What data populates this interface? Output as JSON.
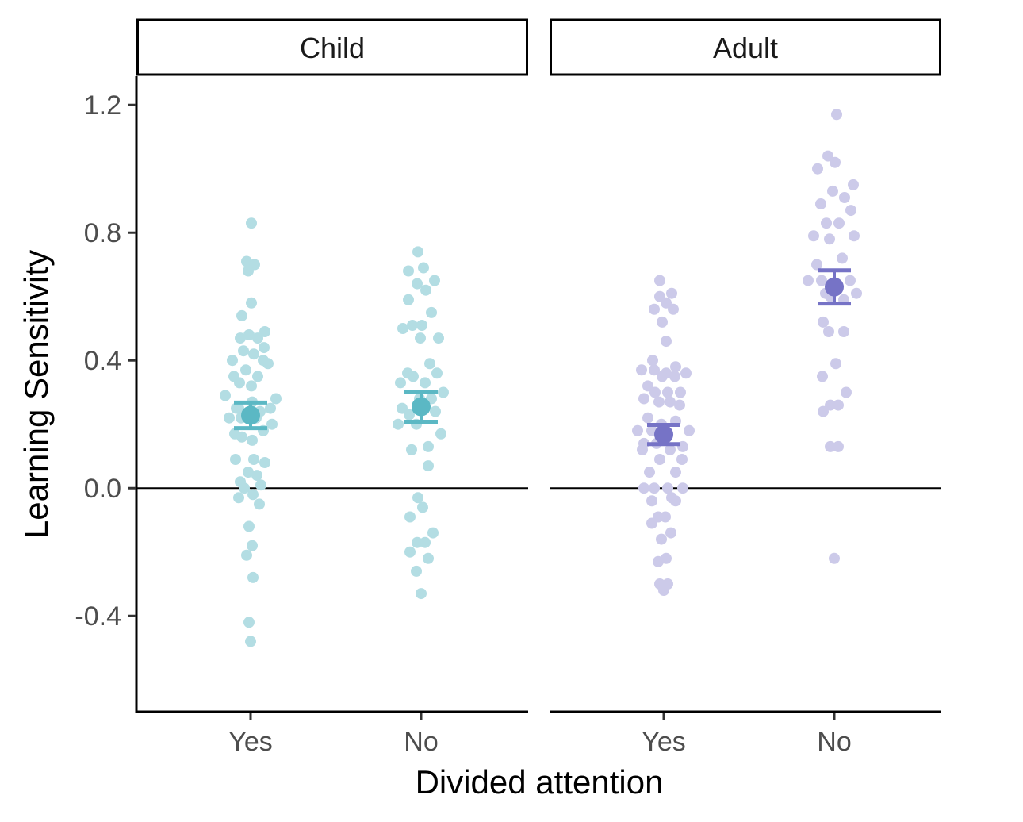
{
  "chart_data": {
    "type": "scatter",
    "subtype": "faceted jittered dot plot with mean and error bars",
    "xlabel": "Divided attention",
    "ylabel": "Learning Sensitivity",
    "ylim": [
      -0.7,
      1.29
    ],
    "yticks": [
      -0.4,
      0.0,
      0.4,
      0.8,
      1.2
    ],
    "ytick_labels": [
      "-0.4",
      "0.0",
      "0.4",
      "0.8",
      "1.2"
    ],
    "categories": [
      "Yes",
      "No"
    ],
    "reference_line_y": 0,
    "grid": false,
    "legend": "none",
    "panels": [
      {
        "strip_label": "Child",
        "color": "#5bb8c4",
        "point_color": "#b3dde3",
        "groups": [
          {
            "category": "Yes",
            "mean": 0.228,
            "ci": [
              0.188,
              0.268
            ],
            "points": [
              {
                "dx": 0.01,
                "y": 0.83
              },
              {
                "dx": -0.05,
                "y": 0.71
              },
              {
                "dx": 0.05,
                "y": 0.7
              },
              {
                "dx": -0.03,
                "y": 0.68
              },
              {
                "dx": 0.01,
                "y": 0.58
              },
              {
                "dx": -0.11,
                "y": 0.54
              },
              {
                "dx": 0.18,
                "y": 0.49
              },
              {
                "dx": -0.13,
                "y": 0.47
              },
              {
                "dx": -0.02,
                "y": 0.48
              },
              {
                "dx": 0.09,
                "y": 0.47
              },
              {
                "dx": -0.23,
                "y": 0.4
              },
              {
                "dx": 0.17,
                "y": 0.44
              },
              {
                "dx": -0.09,
                "y": 0.43
              },
              {
                "dx": 0.04,
                "y": 0.42
              },
              {
                "dx": 0.22,
                "y": 0.39
              },
              {
                "dx": 0.16,
                "y": 0.4
              },
              {
                "dx": -0.06,
                "y": 0.37
              },
              {
                "dx": 0.09,
                "y": 0.35
              },
              {
                "dx": -0.21,
                "y": 0.35
              },
              {
                "dx": -0.14,
                "y": 0.33
              },
              {
                "dx": -0.15,
                "y": 0.25
              },
              {
                "dx": 0.01,
                "y": 0.32
              },
              {
                "dx": -0.32,
                "y": 0.29
              },
              {
                "dx": 0.32,
                "y": 0.28
              },
              {
                "dx": 0.02,
                "y": 0.27
              },
              {
                "dx": 0.25,
                "y": 0.25
              },
              {
                "dx": -0.18,
                "y": 0.25
              },
              {
                "dx": 0.12,
                "y": 0.24
              },
              {
                "dx": -0.27,
                "y": 0.22
              },
              {
                "dx": 0.07,
                "y": 0.22
              },
              {
                "dx": -0.12,
                "y": 0.22
              },
              {
                "dx": 0.27,
                "y": 0.2
              },
              {
                "dx": -0.2,
                "y": 0.17
              },
              {
                "dx": 0.16,
                "y": 0.18
              },
              {
                "dx": -0.11,
                "y": 0.16
              },
              {
                "dx": 0.02,
                "y": 0.15
              },
              {
                "dx": -0.19,
                "y": 0.09
              },
              {
                "dx": 0.18,
                "y": 0.08
              },
              {
                "dx": 0.04,
                "y": 0.09
              },
              {
                "dx": -0.03,
                "y": 0.05
              },
              {
                "dx": 0.08,
                "y": 0.04
              },
              {
                "dx": -0.13,
                "y": 0.02
              },
              {
                "dx": 0.13,
                "y": 0.01
              },
              {
                "dx": -0.08,
                "y": 0.0
              },
              {
                "dx": -0.15,
                "y": -0.03
              },
              {
                "dx": 0.03,
                "y": -0.02
              },
              {
                "dx": 0.11,
                "y": -0.05
              },
              {
                "dx": -0.02,
                "y": -0.12
              },
              {
                "dx": 0.02,
                "y": -0.18
              },
              {
                "dx": -0.05,
                "y": -0.21
              },
              {
                "dx": 0.03,
                "y": -0.28
              },
              {
                "dx": -0.02,
                "y": -0.42
              },
              {
                "dx": 0.0,
                "y": -0.48
              }
            ]
          },
          {
            "category": "No",
            "mean": 0.255,
            "ci": [
              0.208,
              0.302
            ],
            "points": [
              {
                "dx": -0.04,
                "y": 0.74
              },
              {
                "dx": 0.03,
                "y": 0.69
              },
              {
                "dx": -0.16,
                "y": 0.68
              },
              {
                "dx": 0.17,
                "y": 0.65
              },
              {
                "dx": -0.05,
                "y": 0.64
              },
              {
                "dx": 0.06,
                "y": 0.62
              },
              {
                "dx": -0.16,
                "y": 0.59
              },
              {
                "dx": 0.13,
                "y": 0.55
              },
              {
                "dx": -0.11,
                "y": 0.51
              },
              {
                "dx": 0.01,
                "y": 0.51
              },
              {
                "dx": -0.23,
                "y": 0.5
              },
              {
                "dx": 0.22,
                "y": 0.47
              },
              {
                "dx": -0.01,
                "y": 0.47
              },
              {
                "dx": 0.11,
                "y": 0.39
              },
              {
                "dx": -0.17,
                "y": 0.36
              },
              {
                "dx": 0.2,
                "y": 0.36
              },
              {
                "dx": -0.1,
                "y": 0.35
              },
              {
                "dx": -0.26,
                "y": 0.33
              },
              {
                "dx": 0.05,
                "y": 0.33
              },
              {
                "dx": 0.28,
                "y": 0.3
              },
              {
                "dx": -0.02,
                "y": 0.28
              },
              {
                "dx": -0.24,
                "y": 0.25
              },
              {
                "dx": 0.13,
                "y": 0.28
              },
              {
                "dx": -0.15,
                "y": 0.23
              },
              {
                "dx": 0.18,
                "y": 0.24
              },
              {
                "dx": -0.29,
                "y": 0.2
              },
              {
                "dx": -0.06,
                "y": 0.2
              },
              {
                "dx": 0.25,
                "y": 0.17
              },
              {
                "dx": 0.09,
                "y": 0.13
              },
              {
                "dx": -0.12,
                "y": 0.12
              },
              {
                "dx": 0.09,
                "y": 0.07
              },
              {
                "dx": -0.04,
                "y": -0.03
              },
              {
                "dx": 0.02,
                "y": -0.06
              },
              {
                "dx": -0.14,
                "y": -0.09
              },
              {
                "dx": 0.15,
                "y": -0.14
              },
              {
                "dx": -0.05,
                "y": -0.17
              },
              {
                "dx": 0.05,
                "y": -0.17
              },
              {
                "dx": -0.14,
                "y": -0.2
              },
              {
                "dx": 0.09,
                "y": -0.22
              },
              {
                "dx": -0.06,
                "y": -0.26
              },
              {
                "dx": 0.0,
                "y": -0.33
              }
            ]
          }
        ]
      },
      {
        "strip_label": "Adult",
        "color": "#7673c6",
        "point_color": "#cccae9",
        "groups": [
          {
            "category": "Yes",
            "mean": 0.168,
            "ci": [
              0.138,
              0.198
            ],
            "points": [
              {
                "dx": -0.05,
                "y": 0.65
              },
              {
                "dx": 0.1,
                "y": 0.61
              },
              {
                "dx": -0.05,
                "y": 0.6
              },
              {
                "dx": 0.03,
                "y": 0.58
              },
              {
                "dx": -0.12,
                "y": 0.56
              },
              {
                "dx": 0.12,
                "y": 0.56
              },
              {
                "dx": -0.02,
                "y": 0.52
              },
              {
                "dx": 0.03,
                "y": 0.46
              },
              {
                "dx": -0.14,
                "y": 0.4
              },
              {
                "dx": 0.15,
                "y": 0.38
              },
              {
                "dx": -0.28,
                "y": 0.37
              },
              {
                "dx": 0.03,
                "y": 0.36
              },
              {
                "dx": -0.12,
                "y": 0.37
              },
              {
                "dx": 0.28,
                "y": 0.36
              },
              {
                "dx": 0.14,
                "y": 0.35
              },
              {
                "dx": -0.02,
                "y": 0.35
              },
              {
                "dx": -0.2,
                "y": 0.32
              },
              {
                "dx": 0.21,
                "y": 0.3
              },
              {
                "dx": -0.11,
                "y": 0.3
              },
              {
                "dx": 0.05,
                "y": 0.3
              },
              {
                "dx": -0.25,
                "y": 0.28
              },
              {
                "dx": 0.08,
                "y": 0.27
              },
              {
                "dx": -0.06,
                "y": 0.27
              },
              {
                "dx": 0.2,
                "y": 0.26
              },
              {
                "dx": -0.2,
                "y": 0.22
              },
              {
                "dx": 0.15,
                "y": 0.21
              },
              {
                "dx": -0.03,
                "y": 0.2
              },
              {
                "dx": -0.33,
                "y": 0.18
              },
              {
                "dx": 0.32,
                "y": 0.18
              },
              {
                "dx": -0.15,
                "y": 0.18
              },
              {
                "dx": -0.25,
                "y": 0.14
              },
              {
                "dx": 0.24,
                "y": 0.13
              },
              {
                "dx": -0.09,
                "y": 0.14
              },
              {
                "dx": 0.08,
                "y": 0.12
              },
              {
                "dx": -0.27,
                "y": 0.12
              },
              {
                "dx": 0.23,
                "y": 0.09
              },
              {
                "dx": -0.05,
                "y": 0.09
              },
              {
                "dx": 0.15,
                "y": 0.05
              },
              {
                "dx": -0.18,
                "y": 0.05
              },
              {
                "dx": 0.24,
                "y": 0.0
              },
              {
                "dx": -0.25,
                "y": 0.0
              },
              {
                "dx": -0.12,
                "y": 0.0
              },
              {
                "dx": 0.05,
                "y": 0.0
              },
              {
                "dx": 0.1,
                "y": -0.03
              },
              {
                "dx": 0.15,
                "y": -0.04
              },
              {
                "dx": -0.15,
                "y": -0.04
              },
              {
                "dx": -0.07,
                "y": -0.09
              },
              {
                "dx": 0.02,
                "y": -0.09
              },
              {
                "dx": -0.15,
                "y": -0.11
              },
              {
                "dx": 0.09,
                "y": -0.14
              },
              {
                "dx": -0.03,
                "y": -0.16
              },
              {
                "dx": 0.03,
                "y": -0.22
              },
              {
                "dx": -0.07,
                "y": -0.23
              },
              {
                "dx": -0.05,
                "y": -0.3
              },
              {
                "dx": 0.05,
                "y": -0.3
              },
              {
                "dx": 0.0,
                "y": -0.32
              }
            ]
          },
          {
            "category": "No",
            "mean": 0.63,
            "ci": [
              0.578,
              0.682
            ],
            "points": [
              {
                "dx": 0.03,
                "y": 1.17
              },
              {
                "dx": -0.08,
                "y": 1.04
              },
              {
                "dx": 0.01,
                "y": 1.02
              },
              {
                "dx": -0.21,
                "y": 1.0
              },
              {
                "dx": 0.24,
                "y": 0.95
              },
              {
                "dx": -0.02,
                "y": 0.93
              },
              {
                "dx": 0.13,
                "y": 0.91
              },
              {
                "dx": -0.17,
                "y": 0.89
              },
              {
                "dx": 0.21,
                "y": 0.87
              },
              {
                "dx": -0.1,
                "y": 0.83
              },
              {
                "dx": 0.06,
                "y": 0.83
              },
              {
                "dx": -0.26,
                "y": 0.79
              },
              {
                "dx": 0.25,
                "y": 0.79
              },
              {
                "dx": -0.06,
                "y": 0.78
              },
              {
                "dx": 0.1,
                "y": 0.72
              },
              {
                "dx": -0.22,
                "y": 0.7
              },
              {
                "dx": -0.16,
                "y": 0.65
              },
              {
                "dx": 0.2,
                "y": 0.65
              },
              {
                "dx": -0.33,
                "y": 0.65
              },
              {
                "dx": -0.02,
                "y": 0.64
              },
              {
                "dx": -0.11,
                "y": 0.61
              },
              {
                "dx": 0.28,
                "y": 0.61
              },
              {
                "dx": -0.05,
                "y": 0.6
              },
              {
                "dx": 0.12,
                "y": 0.59
              },
              {
                "dx": -0.14,
                "y": 0.52
              },
              {
                "dx": -0.07,
                "y": 0.49
              },
              {
                "dx": 0.12,
                "y": 0.49
              },
              {
                "dx": 0.02,
                "y": 0.39
              },
              {
                "dx": -0.15,
                "y": 0.35
              },
              {
                "dx": 0.15,
                "y": 0.3
              },
              {
                "dx": -0.05,
                "y": 0.26
              },
              {
                "dx": 0.05,
                "y": 0.26
              },
              {
                "dx": -0.14,
                "y": 0.24
              },
              {
                "dx": -0.05,
                "y": 0.13
              },
              {
                "dx": 0.05,
                "y": 0.13
              },
              {
                "dx": 0.0,
                "y": -0.22
              }
            ]
          }
        ]
      }
    ]
  }
}
